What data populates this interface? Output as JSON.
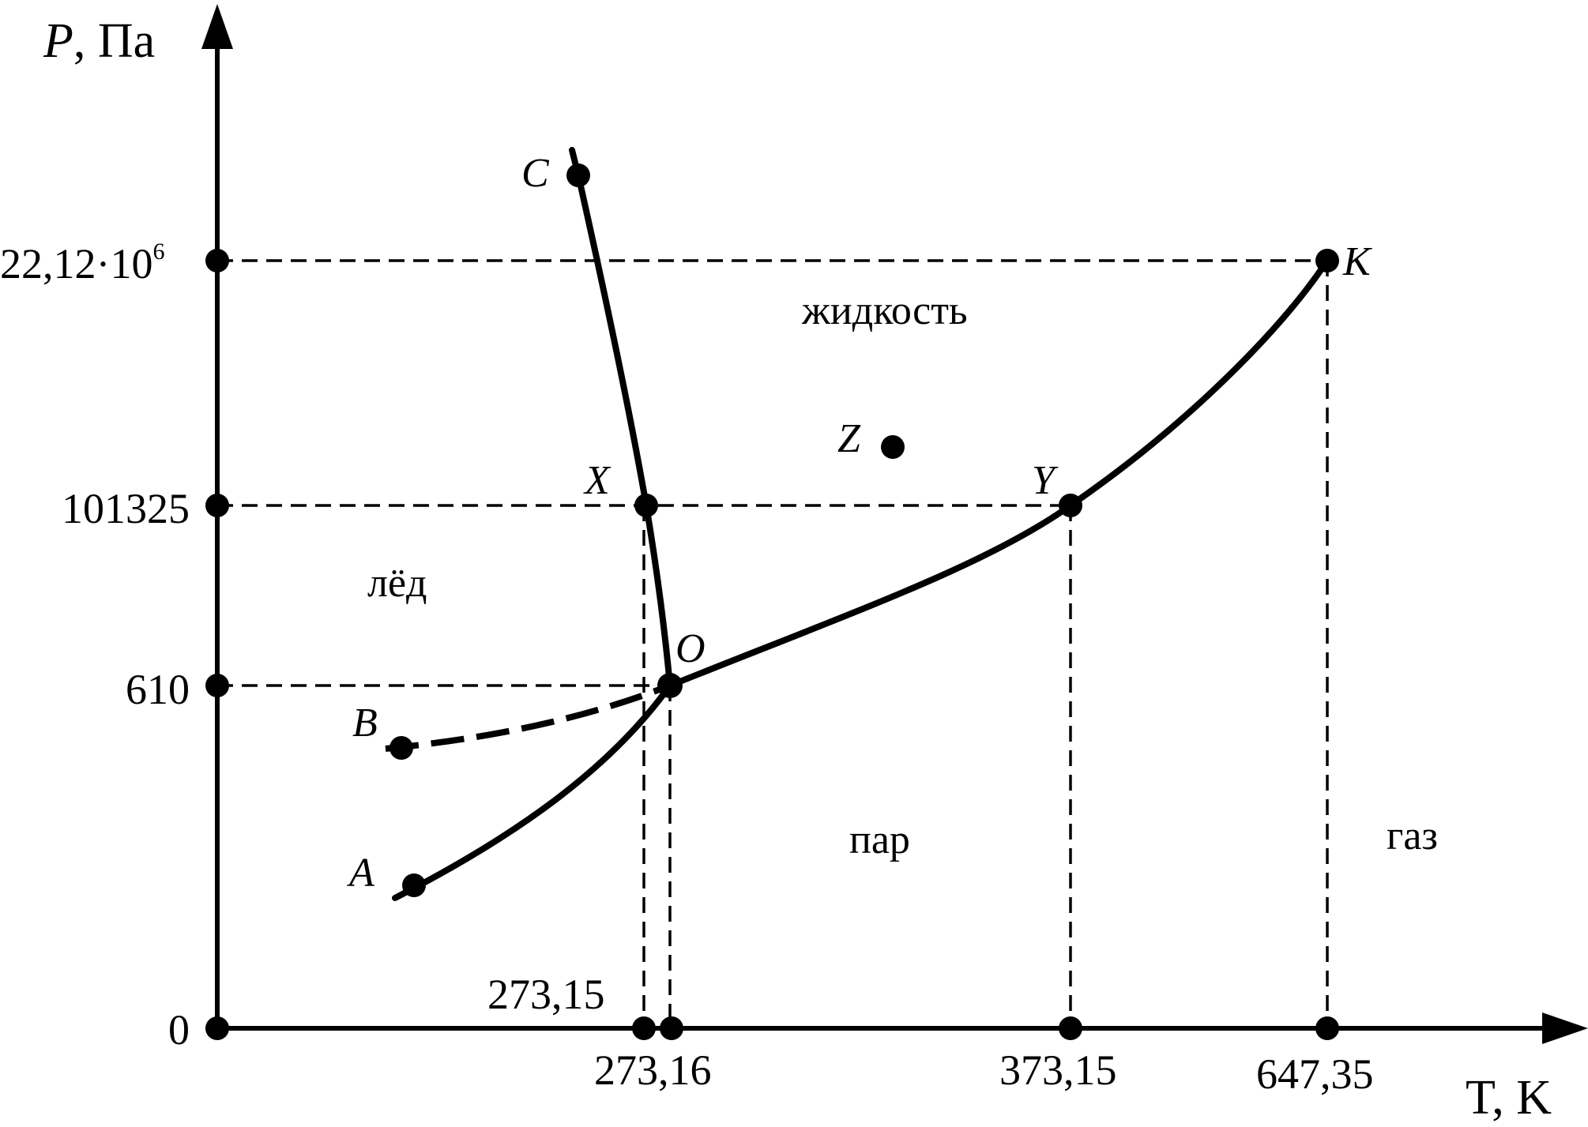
{
  "axes": {
    "y_label_var": "P",
    "y_label_unit": ", Па",
    "x_label": "T, K"
  },
  "y_ticks": {
    "critical_base": "22,12·10",
    "critical_exp": "6",
    "atmospheric": "101325",
    "triple": "610",
    "zero": "0"
  },
  "x_ticks": {
    "melt": "273,15",
    "triple": "273,16",
    "boil": "373,15",
    "critical": "647,35"
  },
  "points": {
    "A": "A",
    "B": "B",
    "C": "C",
    "O": "O",
    "X": "X",
    "Y": "Y",
    "Z": "Z",
    "K": "K"
  },
  "regions": {
    "liquid": "жидкость",
    "ice": "лёд",
    "vapor": "пар",
    "gas": "газ"
  }
}
